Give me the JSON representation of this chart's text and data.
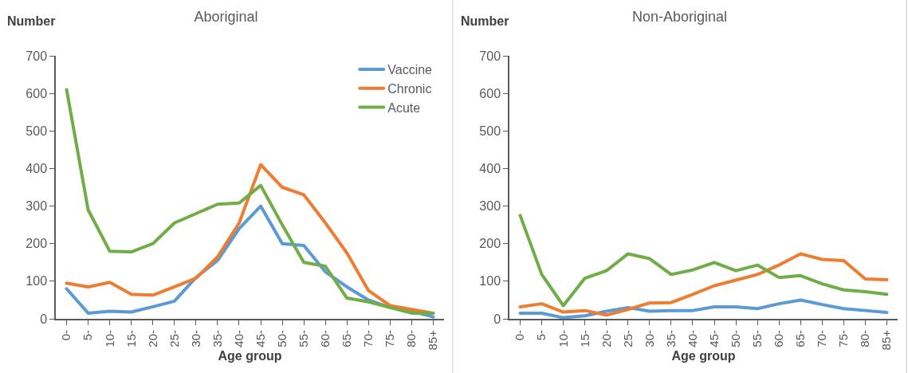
{
  "chart_data": [
    {
      "type": "line",
      "title": "Aboriginal",
      "xlabel": "Age group",
      "ylabel": "Number",
      "categories": [
        "0-",
        "5-",
        "10-",
        "15-",
        "20-",
        "25-",
        "30-",
        "35-",
        "40-",
        "45-",
        "50-",
        "55-",
        "60-",
        "65-",
        "70-",
        "75-",
        "80-",
        "85+"
      ],
      "ylim": [
        0,
        700
      ],
      "yticks": [
        0,
        100,
        200,
        300,
        400,
        500,
        600,
        700
      ],
      "grid": false,
      "legend": "top right",
      "line_style": "solid",
      "marker": "none",
      "series": [
        {
          "name": "Vaccine",
          "color": "#5b9bd5",
          "values": [
            80,
            15,
            20,
            18,
            32,
            47,
            110,
            155,
            240,
            300,
            200,
            195,
            125,
            85,
            50,
            30,
            20,
            5
          ]
        },
        {
          "name": "Chronic",
          "color": "#ed7d31",
          "values": [
            95,
            85,
            97,
            65,
            63,
            85,
            108,
            165,
            255,
            410,
            350,
            330,
            255,
            175,
            75,
            35,
            25,
            15
          ]
        },
        {
          "name": "Acute",
          "color": "#70ad47",
          "values": [
            610,
            290,
            180,
            178,
            200,
            255,
            280,
            305,
            308,
            355,
            250,
            150,
            140,
            55,
            45,
            30,
            15,
            15
          ]
        }
      ]
    },
    {
      "type": "line",
      "title": "Non-Aboriginal",
      "xlabel": "Age group",
      "ylabel": "Number",
      "categories": [
        "0-",
        "5-",
        "10-",
        "15-",
        "20-",
        "25-",
        "30-",
        "35-",
        "40-",
        "45-",
        "50-",
        "55-",
        "60-",
        "65-",
        "70-",
        "75-",
        "80-",
        "85+"
      ],
      "ylim": [
        0,
        700
      ],
      "yticks": [
        0,
        100,
        200,
        300,
        400,
        500,
        600,
        700
      ],
      "grid": false,
      "legend": false,
      "line_style": "solid",
      "marker": "none",
      "series": [
        {
          "color": "#5b9bd5",
          "values": [
            15,
            15,
            3,
            8,
            20,
            30,
            20,
            22,
            22,
            32,
            32,
            27,
            40,
            50,
            38,
            27,
            22,
            17
          ]
        },
        {
          "color": "#ed7d31",
          "values": [
            32,
            40,
            18,
            22,
            10,
            25,
            42,
            43,
            65,
            88,
            103,
            118,
            143,
            173,
            158,
            155,
            106,
            104
          ]
        },
        {
          "color": "#70ad47",
          "values": [
            275,
            118,
            35,
            108,
            128,
            173,
            160,
            118,
            130,
            150,
            128,
            143,
            110,
            115,
            93,
            77,
            72,
            65
          ]
        }
      ]
    }
  ]
}
